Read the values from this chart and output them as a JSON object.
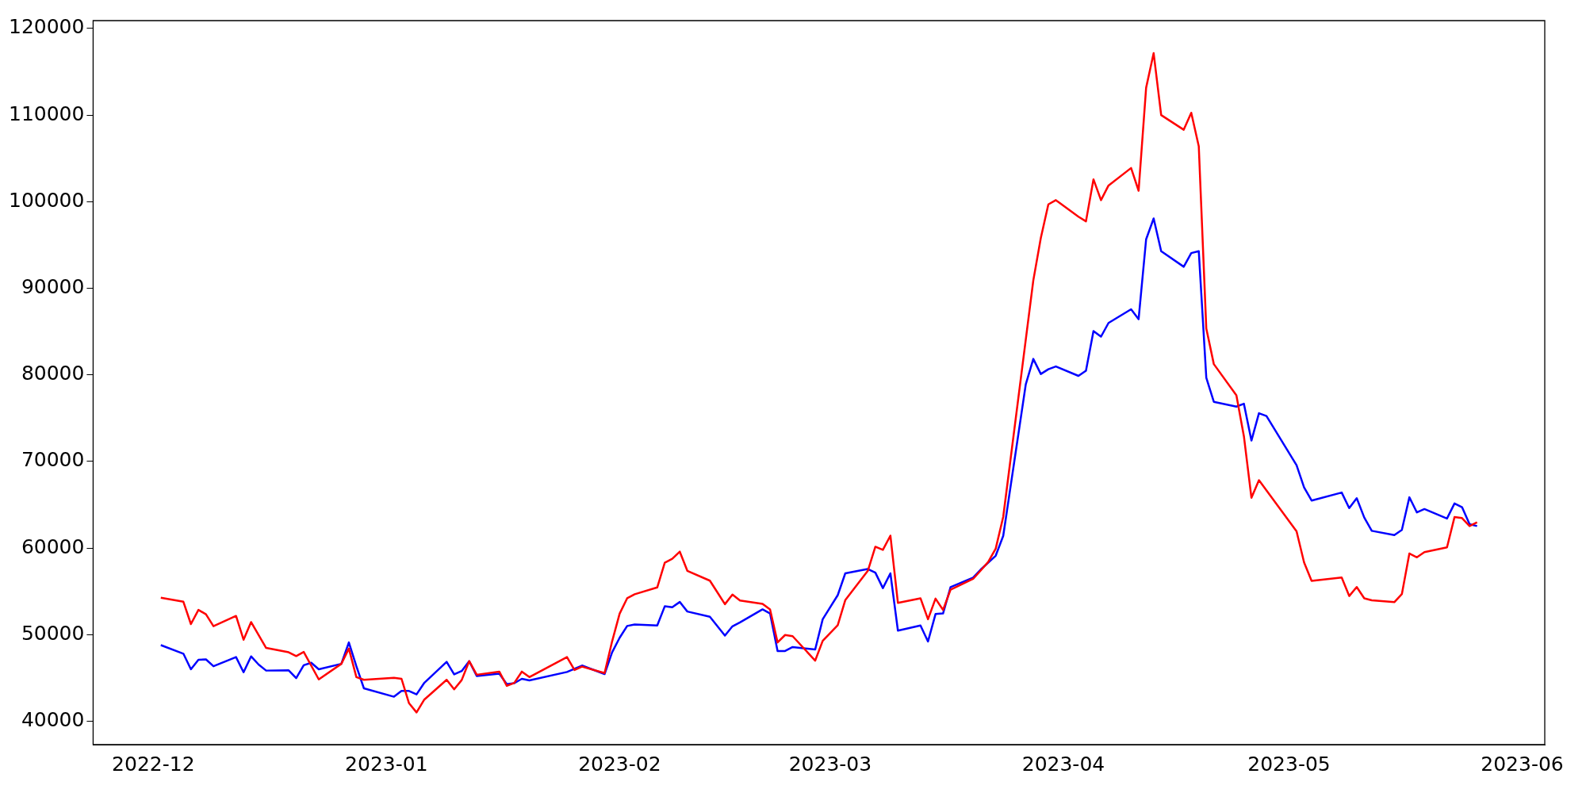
{
  "chart_data": {
    "type": "line",
    "xlim": [
      "2022-11-23",
      "2023-06-04"
    ],
    "ylim": [
      37300,
      120900
    ],
    "xticks": [
      "2022-12",
      "2023-01",
      "2023-02",
      "2023-03",
      "2023-04",
      "2023-05",
      "2023-06"
    ],
    "yticks": [
      40000,
      50000,
      60000,
      70000,
      80000,
      90000,
      100000,
      110000,
      120000
    ],
    "grid": false,
    "legend": false,
    "marker": "none",
    "line_style": "solid",
    "series": [
      {
        "color": "#ff0000",
        "x": [
          "2022-12-02",
          "2022-12-05",
          "2022-12-06",
          "2022-12-07",
          "2022-12-08",
          "2022-12-09",
          "2022-12-12",
          "2022-12-13",
          "2022-12-14",
          "2022-12-16",
          "2022-12-19",
          "2022-12-20",
          "2022-12-21",
          "2022-12-23",
          "2022-12-26",
          "2022-12-27",
          "2022-12-28",
          "2022-12-29",
          "2023-01-02",
          "2023-01-03",
          "2023-01-04",
          "2023-01-05",
          "2023-01-06",
          "2023-01-09",
          "2023-01-10",
          "2023-01-11",
          "2023-01-12",
          "2023-01-13",
          "2023-01-16",
          "2023-01-17",
          "2023-01-18",
          "2023-01-19",
          "2023-01-20",
          "2023-01-25",
          "2023-01-26",
          "2023-01-27",
          "2023-01-30",
          "2023-01-31",
          "2023-02-01",
          "2023-02-02",
          "2023-02-03",
          "2023-02-06",
          "2023-02-07",
          "2023-02-08",
          "2023-02-09",
          "2023-02-10",
          "2023-02-13",
          "2023-02-14",
          "2023-02-15",
          "2023-02-16",
          "2023-02-17",
          "2023-02-20",
          "2023-02-21",
          "2023-02-22",
          "2023-02-23",
          "2023-02-24",
          "2023-02-27",
          "2023-02-28",
          "2023-03-02",
          "2023-03-03",
          "2023-03-06",
          "2023-03-07",
          "2023-03-08",
          "2023-03-09",
          "2023-03-10",
          "2023-03-13",
          "2023-03-14",
          "2023-03-15",
          "2023-03-16",
          "2023-03-17",
          "2023-03-20",
          "2023-03-21",
          "2023-03-22",
          "2023-03-23",
          "2023-03-24",
          "2023-03-28",
          "2023-03-29",
          "2023-03-30",
          "2023-03-31",
          "2023-04-03",
          "2023-04-04",
          "2023-04-05",
          "2023-04-06",
          "2023-04-07",
          "2023-04-10",
          "2023-04-11",
          "2023-04-12",
          "2023-04-13",
          "2023-04-14",
          "2023-04-17",
          "2023-04-18",
          "2023-04-19",
          "2023-04-20",
          "2023-04-21",
          "2023-04-24",
          "2023-04-25",
          "2023-04-26",
          "2023-04-27",
          "2023-05-02",
          "2023-05-03",
          "2023-05-04",
          "2023-05-08",
          "2023-05-09",
          "2023-05-10",
          "2023-05-11",
          "2023-05-12",
          "2023-05-15",
          "2023-05-16",
          "2023-05-17",
          "2023-05-18",
          "2023-05-19",
          "2023-05-22",
          "2023-05-23",
          "2023-05-24",
          "2023-05-25",
          "2023-05-26"
        ],
        "values": [
          54270,
          53800,
          51220,
          52860,
          52350,
          50980,
          52160,
          49410,
          51450,
          48470,
          47960,
          47530,
          48000,
          44830,
          46630,
          48390,
          45100,
          44790,
          45020,
          44900,
          42080,
          41020,
          42470,
          44790,
          43690,
          44750,
          46940,
          45370,
          45730,
          44080,
          44430,
          45730,
          45100,
          47410,
          45920,
          46310,
          45570,
          49220,
          52420,
          54200,
          54660,
          55450,
          58300,
          58760,
          59580,
          57370,
          56230,
          54880,
          53520,
          54630,
          53950,
          53560,
          52920,
          49100,
          49960,
          49820,
          47000,
          49280,
          51100,
          53980,
          57370,
          60150,
          59790,
          61430,
          53660,
          54200,
          51780,
          54160,
          52850,
          55200,
          56440,
          57400,
          58400,
          59930,
          63600,
          90900,
          95810,
          99680,
          100170,
          98260,
          97720,
          102570,
          100170,
          101860,
          103880,
          101260,
          113150,
          117140,
          109990,
          108300,
          110260,
          106390,
          85340,
          81240,
          77640,
          72900,
          65810,
          67830,
          61930,
          58330,
          56200,
          56590,
          54460,
          55500,
          54190,
          53970,
          53750,
          54680,
          59370,
          58930,
          59530,
          60080,
          63570,
          63460,
          62540,
          62970
        ]
      },
      {
        "color": "#0000ff",
        "x": [
          "2022-12-02",
          "2022-12-05",
          "2022-12-06",
          "2022-12-07",
          "2022-12-08",
          "2022-12-09",
          "2022-12-12",
          "2022-12-13",
          "2022-12-14",
          "2022-12-15",
          "2022-12-16",
          "2022-12-19",
          "2022-12-20",
          "2022-12-21",
          "2022-12-22",
          "2022-12-23",
          "2022-12-26",
          "2022-12-27",
          "2022-12-28",
          "2022-12-29",
          "2023-01-02",
          "2023-01-03",
          "2023-01-04",
          "2023-01-05",
          "2023-01-06",
          "2023-01-09",
          "2023-01-10",
          "2023-01-11",
          "2023-01-12",
          "2023-01-13",
          "2023-01-16",
          "2023-01-17",
          "2023-01-18",
          "2023-01-19",
          "2023-01-20",
          "2023-01-25",
          "2023-01-27",
          "2023-01-30",
          "2023-01-31",
          "2023-02-01",
          "2023-02-02",
          "2023-02-03",
          "2023-02-06",
          "2023-02-07",
          "2023-02-08",
          "2023-02-09",
          "2023-02-10",
          "2023-02-13",
          "2023-02-15",
          "2023-02-16",
          "2023-02-17",
          "2023-02-20",
          "2023-02-21",
          "2023-02-22",
          "2023-02-23",
          "2023-02-24",
          "2023-02-27",
          "2023-02-28",
          "2023-03-02",
          "2023-03-03",
          "2023-03-06",
          "2023-03-07",
          "2023-03-08",
          "2023-03-09",
          "2023-03-10",
          "2023-03-13",
          "2023-03-14",
          "2023-03-15",
          "2023-03-16",
          "2023-03-17",
          "2023-03-20",
          "2023-03-21",
          "2023-03-23",
          "2023-03-24",
          "2023-03-27",
          "2023-03-28",
          "2023-03-29",
          "2023-03-30",
          "2023-03-31",
          "2023-04-03",
          "2023-04-04",
          "2023-04-05",
          "2023-04-06",
          "2023-04-07",
          "2023-04-10",
          "2023-04-11",
          "2023-04-12",
          "2023-04-13",
          "2023-04-14",
          "2023-04-17",
          "2023-04-18",
          "2023-04-19",
          "2023-04-20",
          "2023-04-21",
          "2023-04-24",
          "2023-04-25",
          "2023-04-26",
          "2023-04-27",
          "2023-04-28",
          "2023-05-02",
          "2023-05-03",
          "2023-05-04",
          "2023-05-08",
          "2023-05-09",
          "2023-05-10",
          "2023-05-11",
          "2023-05-12",
          "2023-05-15",
          "2023-05-16",
          "2023-05-17",
          "2023-05-18",
          "2023-05-19",
          "2023-05-22",
          "2023-05-23",
          "2023-05-24",
          "2023-05-25",
          "2023-05-26"
        ],
        "values": [
          48790,
          47800,
          46000,
          47100,
          47140,
          46350,
          47410,
          45650,
          47490,
          46550,
          45850,
          45880,
          44980,
          46470,
          46750,
          46000,
          46630,
          49100,
          46350,
          43800,
          42830,
          43500,
          43500,
          43100,
          44400,
          46860,
          45410,
          45800,
          46940,
          45220,
          45490,
          44280,
          44400,
          44900,
          44710,
          45690,
          46430,
          45450,
          47960,
          49640,
          51000,
          51170,
          51060,
          53270,
          53170,
          53770,
          52670,
          52060,
          49890,
          50960,
          51420,
          52920,
          52450,
          48110,
          48110,
          48570,
          48290,
          51780,
          54560,
          57080,
          57580,
          57160,
          55370,
          57080,
          50460,
          51060,
          49210,
          52380,
          52450,
          55480,
          56590,
          57510,
          59110,
          61400,
          78900,
          81840,
          80100,
          80650,
          80970,
          79880,
          80480,
          85060,
          84410,
          85990,
          87570,
          86430,
          95650,
          98050,
          94280,
          92480,
          94060,
          94280,
          79660,
          76880,
          76330,
          76660,
          72410,
          75570,
          75240,
          69570,
          67000,
          65480,
          66410,
          64610,
          65750,
          63520,
          61990,
          61500,
          62100,
          65860,
          64110,
          64500,
          63410,
          65150,
          64720,
          62750,
          62540
        ]
      }
    ]
  }
}
